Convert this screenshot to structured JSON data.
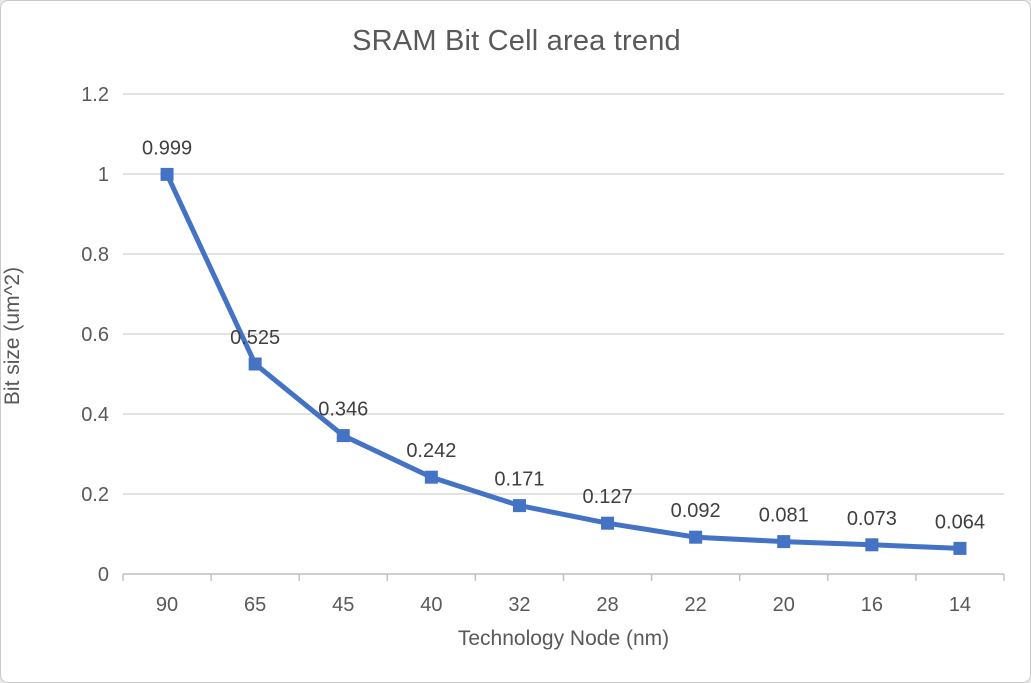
{
  "figure": {
    "background": "#ffffff",
    "border_color": "#c9c9c9"
  },
  "chart_data": {
    "type": "line",
    "title": "SRAM Bit Cell area trend",
    "xlabel": "Technology Node (nm)",
    "ylabel": "Bit size (um^2)",
    "categories": [
      "90",
      "65",
      "45",
      "40",
      "32",
      "28",
      "22",
      "20",
      "16",
      "14"
    ],
    "values": [
      0.999,
      0.525,
      0.346,
      0.242,
      0.171,
      0.127,
      0.092,
      0.081,
      0.073,
      0.064
    ],
    "point_labels": [
      "0.999",
      "0.525",
      "0.346",
      "0.242",
      "0.171",
      "0.127",
      "0.092",
      "0.081",
      "0.073",
      "0.064"
    ],
    "ylim": [
      0,
      1.2
    ],
    "yticks": [
      0,
      0.2,
      0.4,
      0.6,
      0.8,
      1,
      1.2
    ],
    "ytick_labels": [
      "0",
      "0.2",
      "0.4",
      "0.6",
      "0.8",
      "1",
      "1.2"
    ],
    "grid": "horizontal",
    "legend": "none",
    "line_color": "#4472C4",
    "marker": "square",
    "colors": {
      "gridline": "#d9d9d9",
      "axis_line": "#bfbfbf",
      "tick_label": "#595959",
      "title": "#595959",
      "data_label": "#3f3f3f"
    }
  }
}
